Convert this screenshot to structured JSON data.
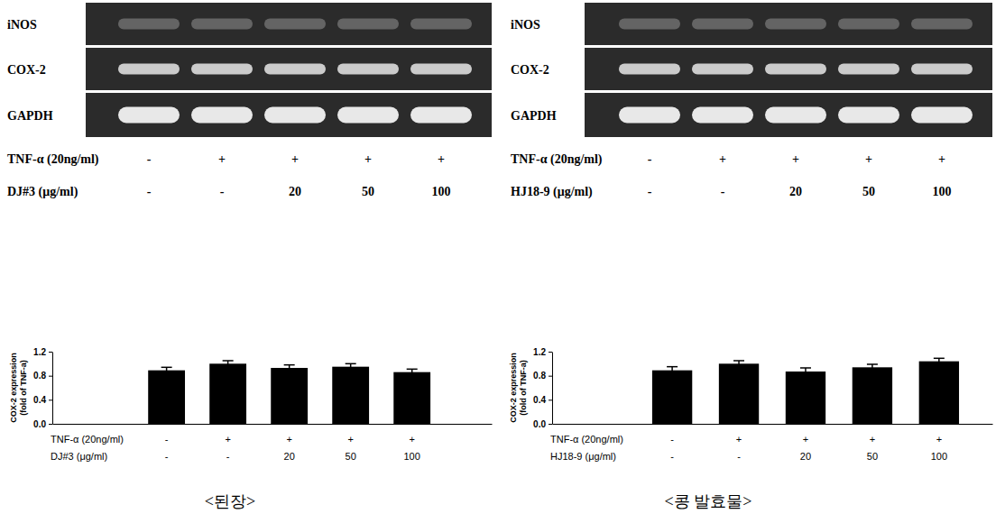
{
  "chart_data": [
    {
      "type": "bar",
      "categories": [
        null,
        null,
        null,
        null,
        null
      ],
      "values": [
        0.89,
        1.0,
        0.93,
        0.95,
        0.86
      ],
      "errors": [
        0.05,
        0.05,
        0.05,
        0.05,
        0.05
      ],
      "color": "#000000",
      "ylim": [
        0,
        1.2
      ],
      "yticks": [
        {
          "value": 0,
          "label": "0.0"
        },
        0.4,
        0.8,
        1.2
      ],
      "y_label": [
        "COX-2 expression",
        "(fold of TNF-a)"
      ],
      "conditions": [
        {
          "label": "TNF-α (20ng/ml)",
          "values": [
            "-",
            "+",
            "+",
            "+",
            "+"
          ]
        },
        {
          "label": "DJ#3 (μg/ml)",
          "values": [
            "-",
            "-",
            "20",
            "50",
            "100"
          ]
        }
      ]
    },
    {
      "type": "bar",
      "categories": [
        null,
        null,
        null,
        null,
        null
      ],
      "values": [
        0.89,
        1.0,
        0.87,
        0.94,
        1.04
      ],
      "errors": [
        0.06,
        0.05,
        0.06,
        0.05,
        0.05
      ],
      "color": "#000000",
      "ylim": [
        0,
        1.2
      ],
      "yticks": [
        {
          "value": 0,
          "label": "0.0"
        },
        0.4,
        0.8,
        1.2
      ],
      "y_label": [
        "COX-2 expression",
        "(fold of TNF-a)"
      ],
      "conditions": [
        {
          "label": "TNF-α (20ng/ml)",
          "values": [
            "-",
            "+",
            "+",
            "+",
            "+"
          ]
        },
        {
          "label": "HJ18-9 (μg/ml)",
          "values": [
            "-",
            "-",
            "20",
            "50",
            "100"
          ]
        }
      ]
    }
  ],
  "blots": [
    {
      "bands": [
        "iNOS",
        "COX-2",
        "GAPDH"
      ],
      "conditions": [
        {
          "label": "TNF-α (20ng/ml)",
          "values": [
            "-",
            "+",
            "+",
            "+",
            "+"
          ]
        },
        {
          "label": "DJ#3 (μg/ml)",
          "values": [
            "-",
            "-",
            "20",
            "50",
            "100"
          ]
        }
      ]
    },
    {
      "bands": [
        "iNOS",
        "COX-2",
        "GAPDH"
      ],
      "conditions": [
        {
          "label": "TNF-α (20ng/ml)",
          "values": [
            "-",
            "+",
            "+",
            "+",
            "+"
          ]
        },
        {
          "label": "HJ18-9 (μg/ml)",
          "values": [
            "-",
            "-",
            "20",
            "50",
            "100"
          ]
        }
      ]
    }
  ],
  "captions": [
    "<된장>",
    "<콩 발효물>"
  ]
}
